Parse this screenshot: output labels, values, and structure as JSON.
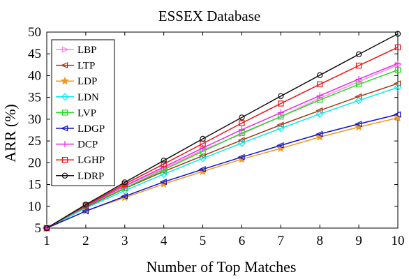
{
  "chart_data": {
    "type": "line",
    "title": "ESSEX Database",
    "xlabel": "Number of Top Matches",
    "ylabel": "ARR (%)",
    "xlim": [
      1,
      10
    ],
    "ylim": [
      5,
      50
    ],
    "x": [
      1,
      2,
      3,
      4,
      5,
      6,
      7,
      8,
      9,
      10
    ],
    "xticks": [
      "1",
      "2",
      "3",
      "4",
      "5",
      "6",
      "7",
      "8",
      "9",
      "10"
    ],
    "yticks": [
      "5",
      "10",
      "15",
      "20",
      "25",
      "30",
      "35",
      "40",
      "45",
      "50"
    ],
    "grid": false,
    "legend_position": "top-left",
    "series": [
      {
        "name": "LBP",
        "color": "#ff88dd",
        "marker": "triangle-right",
        "values": [
          5.0,
          10.1,
          14.6,
          18.7,
          22.9,
          26.6,
          30.6,
          34.8,
          38.6,
          42.5
        ]
      },
      {
        "name": "LTP",
        "color": "#aa3311",
        "marker": "triangle-left",
        "values": [
          5.0,
          9.8,
          14.1,
          18.0,
          21.6,
          25.2,
          28.7,
          32.0,
          35.2,
          38.2
        ]
      },
      {
        "name": "LDP",
        "color": "#ee9922",
        "marker": "star",
        "values": [
          5.0,
          8.9,
          12.0,
          15.1,
          18.0,
          20.8,
          23.3,
          25.9,
          28.2,
          30.3
        ]
      },
      {
        "name": "LDN",
        "color": "#00eeee",
        "marker": "diamond",
        "values": [
          5.0,
          9.6,
          13.6,
          17.4,
          21.0,
          24.5,
          27.9,
          31.2,
          34.3,
          37.3
        ]
      },
      {
        "name": "LVP",
        "color": "#22dd22",
        "marker": "square",
        "values": [
          5.0,
          10.0,
          14.2,
          18.4,
          22.6,
          26.8,
          30.6,
          34.4,
          38.0,
          41.3
        ]
      },
      {
        "name": "LDGP",
        "color": "#1111cc",
        "marker": "triangle-left",
        "values": [
          5.0,
          8.9,
          12.3,
          15.6,
          18.5,
          21.3,
          24.0,
          26.6,
          28.9,
          31.1
        ]
      },
      {
        "name": "DCP",
        "color": "#ee22ee",
        "marker": "plus",
        "values": [
          5.0,
          10.1,
          14.7,
          19.0,
          23.4,
          27.6,
          31.5,
          35.4,
          39.2,
          42.8
        ]
      },
      {
        "name": "LGHP",
        "color": "#ee1111",
        "marker": "square",
        "values": [
          5.0,
          10.2,
          15.1,
          19.7,
          24.4,
          29.1,
          33.6,
          38.0,
          42.3,
          46.5
        ]
      },
      {
        "name": "LDRP",
        "color": "#111111",
        "marker": "circle",
        "values": [
          5.0,
          10.4,
          15.5,
          20.5,
          25.5,
          30.4,
          35.3,
          40.1,
          44.9,
          49.6
        ]
      }
    ]
  }
}
